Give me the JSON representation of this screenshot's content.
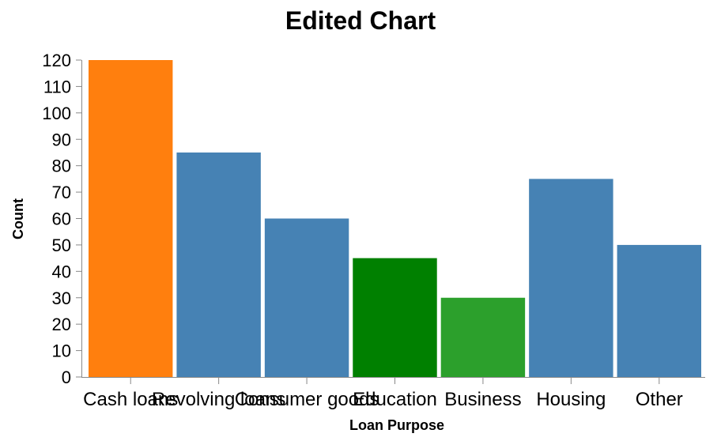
{
  "chart_data": {
    "type": "bar",
    "title": "Edited Chart",
    "xlabel": "Loan Purpose",
    "ylabel": "Count",
    "categories": [
      "Cash loans",
      "Revolving loans",
      "Consumer goods",
      "Education",
      "Business",
      "Housing",
      "Other"
    ],
    "values": [
      120,
      85,
      60,
      45,
      30,
      75,
      50
    ],
    "colors": [
      "#ff7f0e",
      "#4682b4",
      "#4682b4",
      "#008000",
      "#2ca02c",
      "#4682b4",
      "#4682b4"
    ],
    "ylim": [
      0,
      120
    ],
    "yticks": [
      0,
      10,
      20,
      30,
      40,
      50,
      60,
      70,
      80,
      90,
      100,
      110,
      120
    ],
    "grid": false,
    "legend": "none"
  }
}
